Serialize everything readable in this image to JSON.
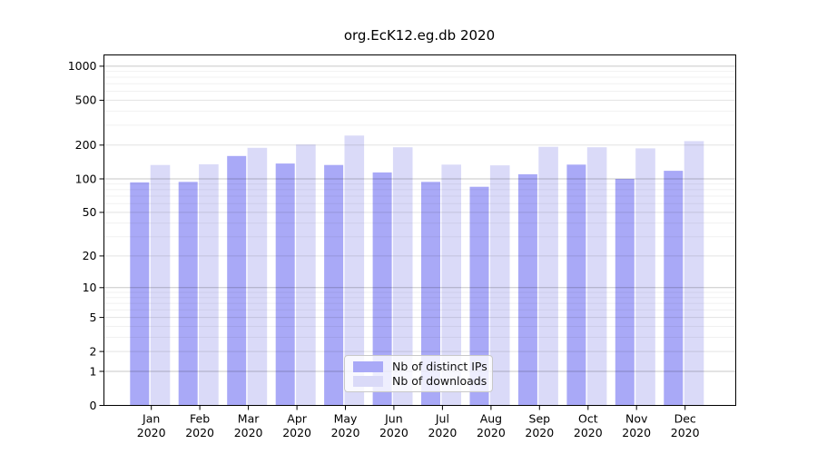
{
  "figure": {
    "background": "#ffffff"
  },
  "chart_data": {
    "type": "bar",
    "title": "org.EcK12.eg.db 2020",
    "categories": [
      "Jan 2020",
      "Feb 2020",
      "Mar 2020",
      "Apr 2020",
      "May 2020",
      "Jun 2020",
      "Jul 2020",
      "Aug 2020",
      "Sep 2020",
      "Oct 2020",
      "Nov 2020",
      "Dec 2020"
    ],
    "series": [
      {
        "name": "Nb of distinct IPs",
        "color": "#a9a9f7",
        "values": [
          93,
          94,
          160,
          137,
          133,
          114,
          94,
          85,
          110,
          134,
          100,
          118
        ]
      },
      {
        "name": "Nb of downloads",
        "color": "#dadaf8",
        "values": [
          133,
          135,
          189,
          202,
          243,
          191,
          134,
          132,
          193,
          191,
          187,
          217
        ]
      }
    ],
    "xlabel": "",
    "ylabel": "",
    "yscale": "log10(value+1)",
    "yticks": [
      0,
      1,
      2,
      5,
      10,
      20,
      50,
      100,
      200,
      500,
      1000
    ],
    "ylim": [
      0,
      1258
    ],
    "grid": "horizontal",
    "major_gridline_values": [
      1,
      10,
      100,
      1000
    ],
    "mid_gridline_values": [
      2,
      5,
      20,
      50,
      200,
      500
    ],
    "legend_position": "inside-bottom-center",
    "axis_color": "#000000",
    "tick_label_color": "#000000"
  }
}
